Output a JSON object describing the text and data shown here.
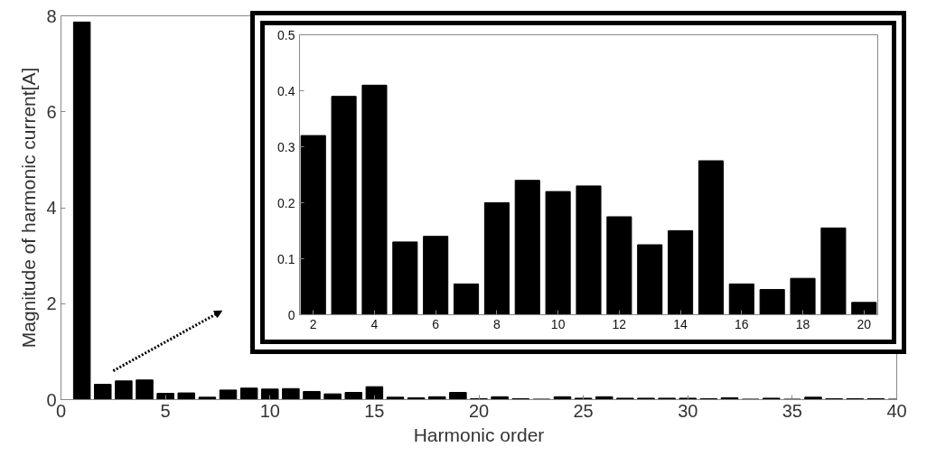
{
  "chart_data": [
    {
      "type": "bar",
      "xlabel": "Harmonic order",
      "ylabel": "Magnitude of harmonic current[A]",
      "color": "#000000",
      "x": [
        1,
        2,
        3,
        4,
        5,
        6,
        7,
        8,
        9,
        10,
        11,
        12,
        13,
        14,
        15,
        16,
        17,
        18,
        19,
        20,
        21,
        22,
        23,
        24,
        25,
        26,
        27,
        28,
        29,
        30,
        31,
        32,
        33,
        34,
        35,
        36,
        37,
        38,
        39,
        40
      ],
      "values": [
        7.87,
        0.32,
        0.39,
        0.41,
        0.13,
        0.14,
        0.05,
        0.2,
        0.24,
        0.22,
        0.23,
        0.17,
        0.12,
        0.15,
        0.27,
        0.05,
        0.04,
        0.06,
        0.15,
        0.02,
        0.06,
        0.02,
        0.01,
        0.06,
        0.03,
        0.06,
        0.03,
        0.03,
        0.03,
        0.03,
        0.02,
        0.04,
        0.01,
        0.03,
        0.01,
        0.05,
        0.02,
        0.02,
        0.02,
        0.01
      ],
      "xlim": [
        0,
        40
      ],
      "ylim": [
        0,
        8
      ],
      "xticks": [
        0,
        5,
        10,
        15,
        20,
        25,
        30,
        35,
        40
      ],
      "yticks": [
        0,
        2,
        4,
        6,
        8
      ]
    },
    {
      "type": "bar",
      "color": "#000000",
      "x": [
        2,
        3,
        4,
        5,
        6,
        7,
        8,
        9,
        10,
        11,
        12,
        13,
        14,
        15,
        16,
        17,
        18,
        19,
        20
      ],
      "values": [
        0.32,
        0.39,
        0.41,
        0.13,
        0.14,
        0.055,
        0.2,
        0.24,
        0.22,
        0.23,
        0.175,
        0.125,
        0.15,
        0.275,
        0.055,
        0.045,
        0.065,
        0.155,
        0.022
      ],
      "xlim": [
        1.55,
        20.45
      ],
      "ylim": [
        0,
        0.5
      ],
      "xticks": [
        2,
        4,
        6,
        8,
        10,
        12,
        14,
        16,
        18,
        20
      ],
      "yticks": [
        0,
        0.1,
        0.2,
        0.3,
        0.4,
        0.5
      ]
    }
  ]
}
